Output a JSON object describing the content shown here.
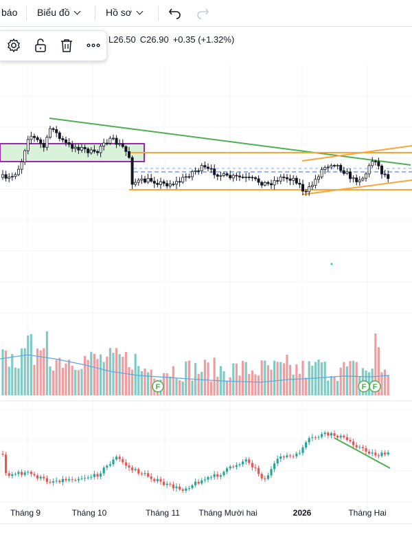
{
  "toolbar": {
    "alert_label": "báo",
    "chart_label": "Biểu đồ",
    "profile_label": "Hồ sơ",
    "undo_icon": "undo-icon",
    "redo_icon": "redo-icon"
  },
  "drawing_toolbar": {
    "icons": [
      "gear-icon",
      "unlock-icon",
      "trash-icon",
      "more-icon"
    ]
  },
  "ohlc": {
    "low": "L26.50",
    "close": "C26.90",
    "change": "+0.35 (+1.32%)"
  },
  "colors": {
    "up": "#26a69a",
    "down": "#ef5350",
    "vol_up": "#80cbc4",
    "vol_down": "#f19da0",
    "trend_green": "#4caf50",
    "orange": "#f7a738",
    "purple": "#9c27b0",
    "box_fill": "#d9f2d9",
    "vol_ma": "#5aa9e6",
    "dash_blue": "#2962ff",
    "grid": "#f0f3fa"
  },
  "chart_data": {
    "type": "candlestick",
    "x_axis_labels": [
      "Tháng 9",
      "Tháng 10",
      "Tháng 11",
      "Tháng Mười hai",
      "2026",
      "Tháng Hai"
    ],
    "event_markers": [
      "F",
      "F",
      "F"
    ],
    "panes": [
      "price",
      "volume",
      "oscillator"
    ],
    "grid": true
  }
}
